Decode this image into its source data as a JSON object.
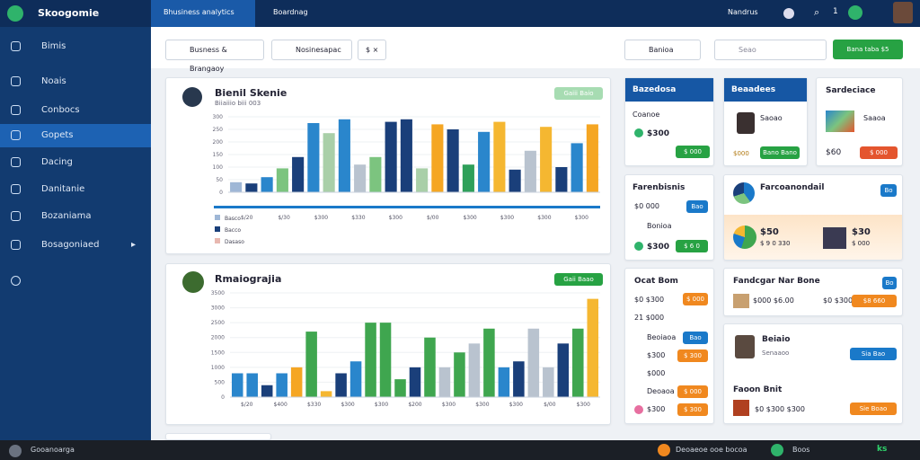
{
  "header": {
    "logo": "Skoogomie",
    "tabs": [
      "Bhusiness analytics",
      "Boardnag"
    ],
    "user": "Nandrus",
    "badge": "1"
  },
  "sidebar": [
    "Bimis",
    "Noais",
    "Conbocs",
    "Gopets",
    "Dacing",
    "Danitanie",
    "Bozaniama",
    "Bosagoniaed"
  ],
  "filters": [
    "Busness & Brangaoy",
    "Nosinesapac",
    "$ ×",
    "Banioa",
    "Seao",
    "Bana taba",
    "$5"
  ],
  "panel1": {
    "title": "Bienil Skenie",
    "subtitle": "Biiaiiio biii 003",
    "button": "Gaiii Baio",
    "legend": [
      "Basco",
      "Bacco",
      "Dasaso"
    ],
    "chart": {
      "type": "bar",
      "ylim": [
        0,
        300
      ],
      "yticks": [
        0,
        50,
        100,
        150,
        200,
        250,
        300
      ],
      "x_labels": [
        "$/20",
        "$/30",
        "$300",
        "$330",
        "$300",
        "$/00",
        "$300",
        "$300",
        "$300",
        "$300"
      ],
      "values": [
        40,
        35,
        60,
        95,
        140,
        275,
        235,
        290,
        110,
        140,
        280,
        290,
        95,
        270,
        250,
        110,
        240,
        280,
        90,
        165,
        260,
        100,
        195,
        270
      ],
      "colors": [
        "#9fb7d6",
        "#1a3f7a",
        "#2a86cc",
        "#7cc47f",
        "#1a3f7a",
        "#2a86cc",
        "#a9cfa8",
        "#2a86cc",
        "#b9c3cf",
        "#7cc47f",
        "#1a3f7a",
        "#1a3f7a",
        "#a9cfa8",
        "#f5a623",
        "#1a3f7a",
        "#2fa05a",
        "#2a86cc",
        "#f5b731",
        "#1a3f7a",
        "#b9c3cf",
        "#f5b731",
        "#1a3f7a",
        "#2a86cc",
        "#f5a623"
      ]
    }
  },
  "panel2": {
    "title": "Rmaiograjia",
    "button": "Gaii Baao",
    "chart": {
      "type": "bar",
      "ylim": [
        0,
        3500
      ],
      "yticks": [
        0,
        500,
        1000,
        1500,
        2000,
        2500,
        3000,
        3500
      ],
      "x_labels": [
        "$/20",
        "$400",
        "$330",
        "$300",
        "$300",
        "$200",
        "$300",
        "$300",
        "$300",
        "$/00",
        "$300"
      ],
      "values": [
        800,
        800,
        400,
        800,
        1000,
        2200,
        200,
        800,
        1200,
        2500,
        2500,
        600,
        1000,
        2000,
        1000,
        1500,
        1800,
        2300,
        1000,
        1200,
        2300,
        1000,
        1800,
        2300,
        3300
      ],
      "colors": [
        "#2a86cc",
        "#2a86cc",
        "#1a3f7a",
        "#2a86cc",
        "#f5a623",
        "#3fa64f",
        "#f5b731",
        "#1a3f7a",
        "#2a86cc",
        "#3fa64f",
        "#3fa64f",
        "#3fa64f",
        "#1a3f7a",
        "#3fa64f",
        "#b9c3cf",
        "#3fa64f",
        "#b9c3cf",
        "#3fa64f",
        "#2a86cc",
        "#1a3f7a",
        "#b9c3cf",
        "#b9c3cf",
        "#1a3f7a",
        "#3fa64f",
        "#f5b731"
      ]
    }
  },
  "cards": {
    "a1": {
      "title": "Bazedosa",
      "text": "Coanoe",
      "value": "$300",
      "button": "$ 000"
    },
    "b1": {
      "title": "Beaadees",
      "text": "Saoao",
      "value": "$000",
      "button": "Bano Bano"
    },
    "c1": {
      "title": "Sardeciace",
      "text": "Saaoa",
      "value": "$60",
      "button": "$ 000"
    },
    "a2": {
      "title": "Farenbisnis",
      "text": "Bonioa",
      "value": "$300",
      "button": "$ 6 0",
      "tag": "Bao",
      "label": "$0 000"
    },
    "b2": {
      "title": "Farcoanondail",
      "tag": "Bo",
      "value": "$50",
      "text": "$ 9 0 330",
      "value2": "$30",
      "text2": "$ 000"
    },
    "a3": {
      "title": "Ocat Bom",
      "rows": [
        "$0 $300",
        "21 $000",
        "Beoiaoa",
        "$300",
        "$000",
        "Deoaoa",
        "$300"
      ],
      "buttons": [
        "$ 000",
        "Bao",
        "$ 300",
        "$ 000",
        "$ 300"
      ]
    },
    "b3": {
      "title": "Fandcgar Nar Bone",
      "text": "$000 $6.00",
      "text2": "$0 $300",
      "button": "$8 660",
      "tag": "Bo"
    },
    "b4": {
      "title": "Beiaio",
      "text": "Senaaoo",
      "button": "Sia Bao"
    },
    "b5": {
      "title": "Faoon Bnit",
      "text": "$0 $300 $300",
      "button": "Sie Boao"
    }
  },
  "footer": {
    "left": "Gooanoarga",
    "mid": "Deoaeoe ooe bocoa",
    "right": "Boos",
    "end": "ks"
  }
}
